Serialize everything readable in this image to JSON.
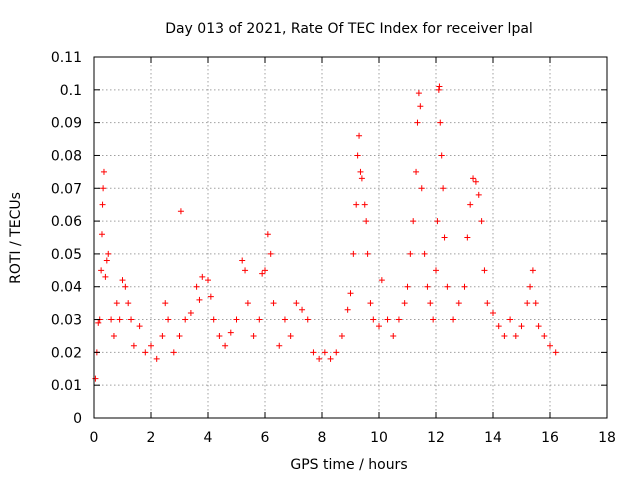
{
  "chart_data": {
    "type": "scatter",
    "title": "Day 013 of 2021, Rate Of TEC Index for receiver lpal",
    "xlabel": "GPS time / hours",
    "ylabel": "ROTI / TECUs",
    "xlim": [
      0,
      18
    ],
    "ylim": [
      0,
      0.11
    ],
    "xticks": [
      "0",
      "2",
      "4",
      "6",
      "8",
      "10",
      "12",
      "14",
      "16",
      "18"
    ],
    "yticks": [
      "0",
      "0.01",
      "0.02",
      "0.03",
      "0.04",
      "0.05",
      "0.06",
      "0.07",
      "0.08",
      "0.09",
      "0.1",
      "0.11"
    ],
    "grid": true,
    "marker": "+",
    "color": "#ff0000",
    "series": [
      {
        "points": [
          [
            0.05,
            0.012
          ],
          [
            0.1,
            0.02
          ],
          [
            0.15,
            0.029
          ],
          [
            0.2,
            0.03
          ],
          [
            0.25,
            0.045
          ],
          [
            0.28,
            0.056
          ],
          [
            0.3,
            0.065
          ],
          [
            0.32,
            0.07
          ],
          [
            0.35,
            0.075
          ],
          [
            0.4,
            0.043
          ],
          [
            0.45,
            0.048
          ],
          [
            0.5,
            0.05
          ],
          [
            0.6,
            0.03
          ],
          [
            0.7,
            0.025
          ],
          [
            0.8,
            0.035
          ],
          [
            0.9,
            0.03
          ],
          [
            1.0,
            0.042
          ],
          [
            1.1,
            0.04
          ],
          [
            1.2,
            0.035
          ],
          [
            1.3,
            0.03
          ],
          [
            1.4,
            0.022
          ],
          [
            1.6,
            0.028
          ],
          [
            1.8,
            0.02
          ],
          [
            2.0,
            0.022
          ],
          [
            2.2,
            0.018
          ],
          [
            2.4,
            0.025
          ],
          [
            2.5,
            0.035
          ],
          [
            2.6,
            0.03
          ],
          [
            2.8,
            0.02
          ],
          [
            3.0,
            0.025
          ],
          [
            3.05,
            0.063
          ],
          [
            3.2,
            0.03
          ],
          [
            3.4,
            0.032
          ],
          [
            3.6,
            0.04
          ],
          [
            3.7,
            0.036
          ],
          [
            3.8,
            0.043
          ],
          [
            4.0,
            0.042
          ],
          [
            4.1,
            0.037
          ],
          [
            4.2,
            0.03
          ],
          [
            4.4,
            0.025
          ],
          [
            4.6,
            0.022
          ],
          [
            4.8,
            0.026
          ],
          [
            5.0,
            0.03
          ],
          [
            5.2,
            0.048
          ],
          [
            5.3,
            0.045
          ],
          [
            5.4,
            0.035
          ],
          [
            5.6,
            0.025
          ],
          [
            5.8,
            0.03
          ],
          [
            5.9,
            0.044
          ],
          [
            6.0,
            0.045
          ],
          [
            6.1,
            0.056
          ],
          [
            6.2,
            0.05
          ],
          [
            6.3,
            0.035
          ],
          [
            6.5,
            0.022
          ],
          [
            6.7,
            0.03
          ],
          [
            6.9,
            0.025
          ],
          [
            7.1,
            0.035
          ],
          [
            7.3,
            0.033
          ],
          [
            7.5,
            0.03
          ],
          [
            7.7,
            0.02
          ],
          [
            7.9,
            0.018
          ],
          [
            8.1,
            0.02
          ],
          [
            8.3,
            0.018
          ],
          [
            8.5,
            0.02
          ],
          [
            8.7,
            0.025
          ],
          [
            8.9,
            0.033
          ],
          [
            9.0,
            0.038
          ],
          [
            9.1,
            0.05
          ],
          [
            9.2,
            0.065
          ],
          [
            9.25,
            0.08
          ],
          [
            9.3,
            0.086
          ],
          [
            9.35,
            0.075
          ],
          [
            9.4,
            0.073
          ],
          [
            9.5,
            0.065
          ],
          [
            9.55,
            0.06
          ],
          [
            9.6,
            0.05
          ],
          [
            9.7,
            0.035
          ],
          [
            9.8,
            0.03
          ],
          [
            10.0,
            0.028
          ],
          [
            10.1,
            0.042
          ],
          [
            10.3,
            0.03
          ],
          [
            10.5,
            0.025
          ],
          [
            10.7,
            0.03
          ],
          [
            10.9,
            0.035
          ],
          [
            11.0,
            0.04
          ],
          [
            11.1,
            0.05
          ],
          [
            11.2,
            0.06
          ],
          [
            11.3,
            0.075
          ],
          [
            11.35,
            0.09
          ],
          [
            11.4,
            0.099
          ],
          [
            11.45,
            0.095
          ],
          [
            11.5,
            0.07
          ],
          [
            11.6,
            0.05
          ],
          [
            11.7,
            0.04
          ],
          [
            11.8,
            0.035
          ],
          [
            11.9,
            0.03
          ],
          [
            12.0,
            0.045
          ],
          [
            12.05,
            0.06
          ],
          [
            12.1,
            0.1
          ],
          [
            12.12,
            0.101
          ],
          [
            12.15,
            0.09
          ],
          [
            12.2,
            0.08
          ],
          [
            12.25,
            0.07
          ],
          [
            12.3,
            0.055
          ],
          [
            12.4,
            0.04
          ],
          [
            12.6,
            0.03
          ],
          [
            12.8,
            0.035
          ],
          [
            13.0,
            0.04
          ],
          [
            13.1,
            0.055
          ],
          [
            13.2,
            0.065
          ],
          [
            13.3,
            0.073
          ],
          [
            13.4,
            0.072
          ],
          [
            13.5,
            0.068
          ],
          [
            13.6,
            0.06
          ],
          [
            13.7,
            0.045
          ],
          [
            13.8,
            0.035
          ],
          [
            14.0,
            0.032
          ],
          [
            14.2,
            0.028
          ],
          [
            14.4,
            0.025
          ],
          [
            14.6,
            0.03
          ],
          [
            14.8,
            0.025
          ],
          [
            15.0,
            0.028
          ],
          [
            15.2,
            0.035
          ],
          [
            15.3,
            0.04
          ],
          [
            15.4,
            0.045
          ],
          [
            15.5,
            0.035
          ],
          [
            15.6,
            0.028
          ],
          [
            15.8,
            0.025
          ],
          [
            16.0,
            0.022
          ],
          [
            16.2,
            0.02
          ]
        ]
      }
    ]
  }
}
